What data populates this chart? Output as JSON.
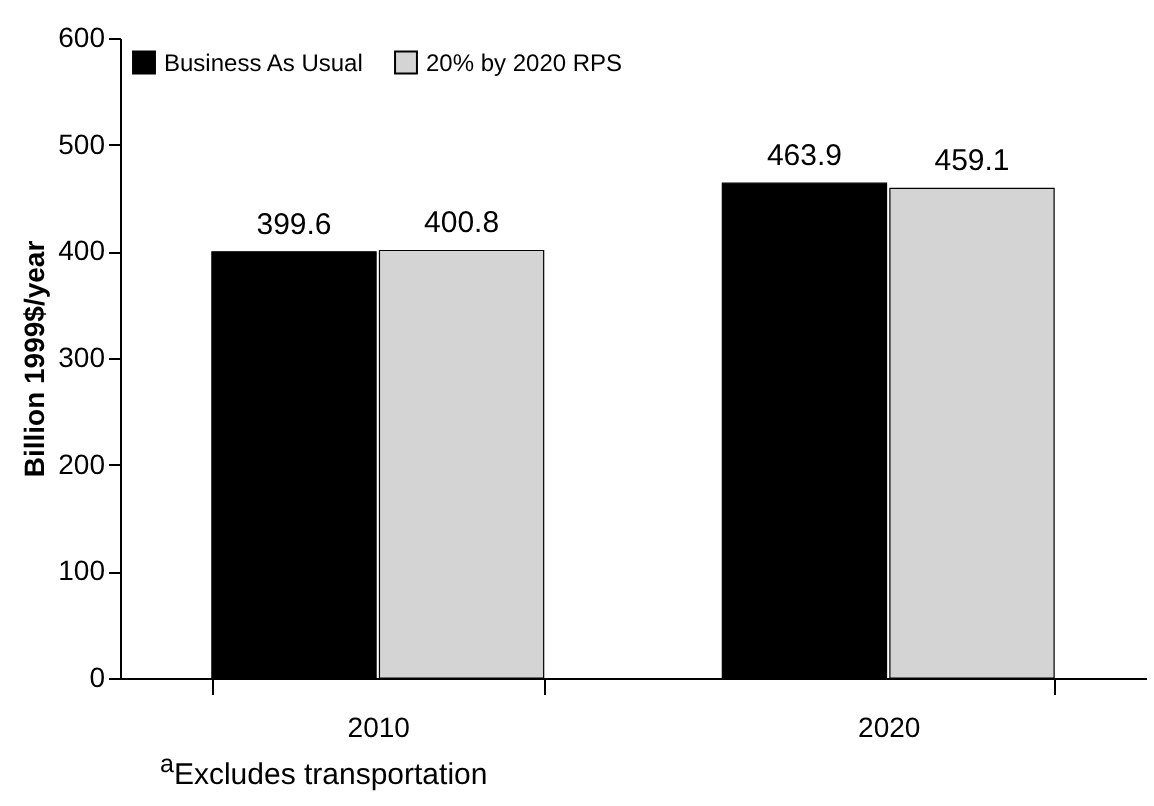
{
  "chart_data": {
    "type": "bar",
    "ylabel": "Billion 1999$/year",
    "categories": [
      "2010",
      "2020"
    ],
    "series": [
      {
        "name": "Business As Usual",
        "color": "#000000",
        "values": [
          399.6,
          463.9
        ]
      },
      {
        "name": "20% by 2020 RPS",
        "color": "#d4d4d4",
        "values": [
          400.8,
          459.1
        ]
      }
    ],
    "ylim": [
      0,
      600
    ],
    "yticks": [
      0,
      100,
      200,
      300,
      400,
      500,
      600
    ],
    "grid": false,
    "legend": "top left",
    "data_labels": true,
    "annotations": [
      "$^{a}$Excludes transportation"
    ]
  }
}
